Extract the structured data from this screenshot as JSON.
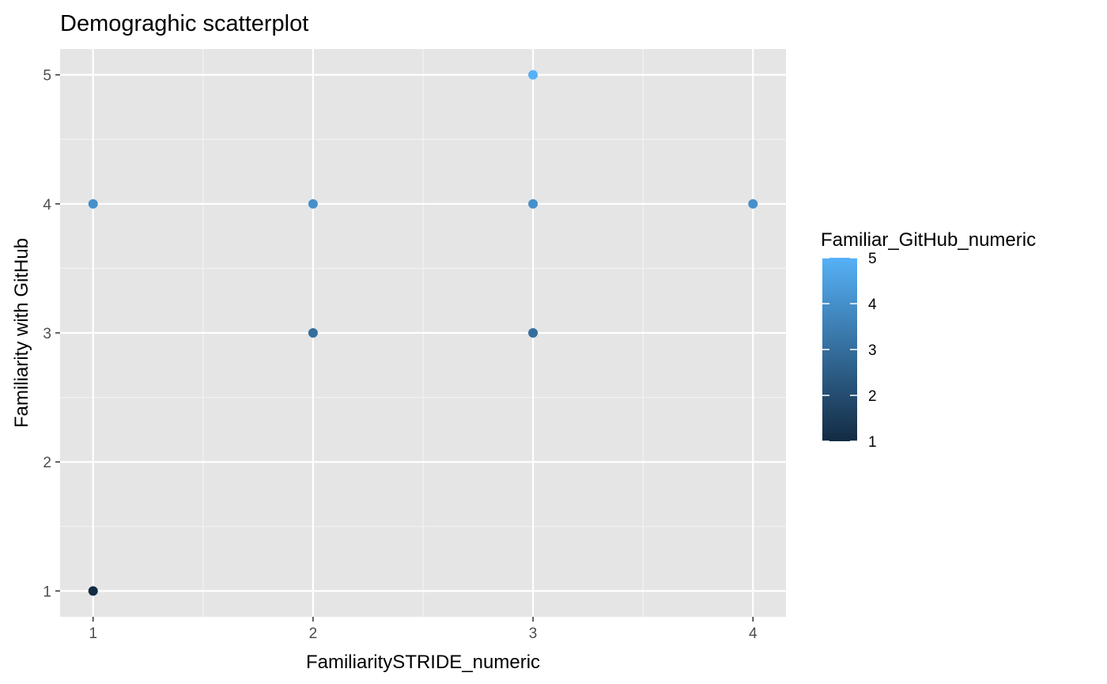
{
  "chart_data": {
    "type": "scatter",
    "title": "Demograghic scatterplot",
    "xlabel": "FamiliaritySTRIDE_numeric",
    "ylabel": "Familiarity with GitHub",
    "xlim": [
      0.85,
      4.15
    ],
    "ylim": [
      0.8,
      5.2
    ],
    "x_ticks": [
      1,
      2,
      3,
      4
    ],
    "y_ticks": [
      1,
      2,
      3,
      4,
      5
    ],
    "grid": true,
    "points": [
      {
        "x": 1,
        "y": 1,
        "color_value": 1
      },
      {
        "x": 1,
        "y": 4,
        "color_value": 4
      },
      {
        "x": 2,
        "y": 3,
        "color_value": 3
      },
      {
        "x": 2,
        "y": 4,
        "color_value": 4
      },
      {
        "x": 3,
        "y": 3,
        "color_value": 3
      },
      {
        "x": 3,
        "y": 4,
        "color_value": 4
      },
      {
        "x": 3,
        "y": 5,
        "color_value": 5
      },
      {
        "x": 4,
        "y": 4,
        "color_value": 4
      }
    ],
    "legend": {
      "title": "Familiar_GitHub_numeric",
      "type": "colorbar",
      "placement": "right",
      "min": 1,
      "max": 5,
      "ticks": [
        1,
        2,
        3,
        4,
        5
      ],
      "low_color": "#132B43",
      "high_color": "#56B1F7"
    },
    "colors": {
      "panel_background": "#e5e5e5",
      "grid_major": "#ffffff",
      "grid_minor": "#f2f2f2"
    }
  }
}
